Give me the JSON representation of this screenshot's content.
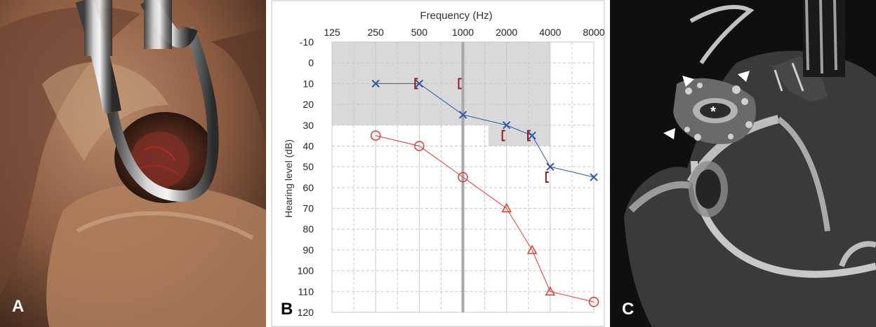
{
  "panels": {
    "a": {
      "letter": "A"
    },
    "b": {
      "letter": "B"
    },
    "c": {
      "letter": "C",
      "marker": "*"
    }
  },
  "chart_data": {
    "type": "line",
    "title": "Frequency (Hz)",
    "xlabel": "Frequency (Hz)",
    "ylabel": "Hearing level (dB)",
    "x_scale": "log2",
    "x_ticks": [
      125,
      250,
      500,
      1000,
      2000,
      4000,
      8000
    ],
    "x_tick_labels": [
      "125",
      "250",
      "500",
      "1000",
      "2000",
      "4000",
      "8000"
    ],
    "ylim": [
      -10,
      120
    ],
    "y_ticks": [
      -10,
      0,
      10,
      20,
      30,
      40,
      50,
      60,
      70,
      80,
      90,
      100,
      110,
      120
    ],
    "y_reversed": true,
    "grid": true,
    "normal_zone": {
      "color": "#d9d9d9",
      "bands": [
        {
          "x": [
            125,
            3000
          ],
          "y": [
            -10,
            30
          ]
        },
        {
          "x": [
            1500,
            4000
          ],
          "y": [
            -10,
            40
          ]
        }
      ]
    },
    "series": [
      {
        "color": "#2e5aa8",
        "marker": "x",
        "points": [
          {
            "x": 250,
            "y": 10
          },
          {
            "x": 500,
            "y": 10
          },
          {
            "x": 1000,
            "y": 25
          },
          {
            "x": 2000,
            "y": 30
          },
          {
            "x": 3000,
            "y": 35
          },
          {
            "x": 4000,
            "y": 50
          },
          {
            "x": 8000,
            "y": 55
          }
        ]
      },
      {
        "color": "#e0372f",
        "marker": "mixed",
        "points": [
          {
            "x": 250,
            "y": 35,
            "marker": "o"
          },
          {
            "x": 500,
            "y": 40,
            "marker": "o"
          },
          {
            "x": 1000,
            "y": 55,
            "marker": "o"
          },
          {
            "x": 2000,
            "y": 70,
            "marker": "triangle"
          },
          {
            "x": 3000,
            "y": 90,
            "marker": "triangle"
          },
          {
            "x": 4000,
            "y": 110,
            "marker": "triangle"
          },
          {
            "x": 8000,
            "y": 115,
            "marker": "o"
          }
        ]
      },
      {
        "color": "#8b1e1e",
        "marker": "[",
        "line": false,
        "points": [
          {
            "x": 500,
            "y": 10
          },
          {
            "x": 1000,
            "y": 10
          },
          {
            "x": 2000,
            "y": 35
          },
          {
            "x": 3000,
            "y": 35
          },
          {
            "x": 4000,
            "y": 55
          }
        ]
      }
    ]
  }
}
